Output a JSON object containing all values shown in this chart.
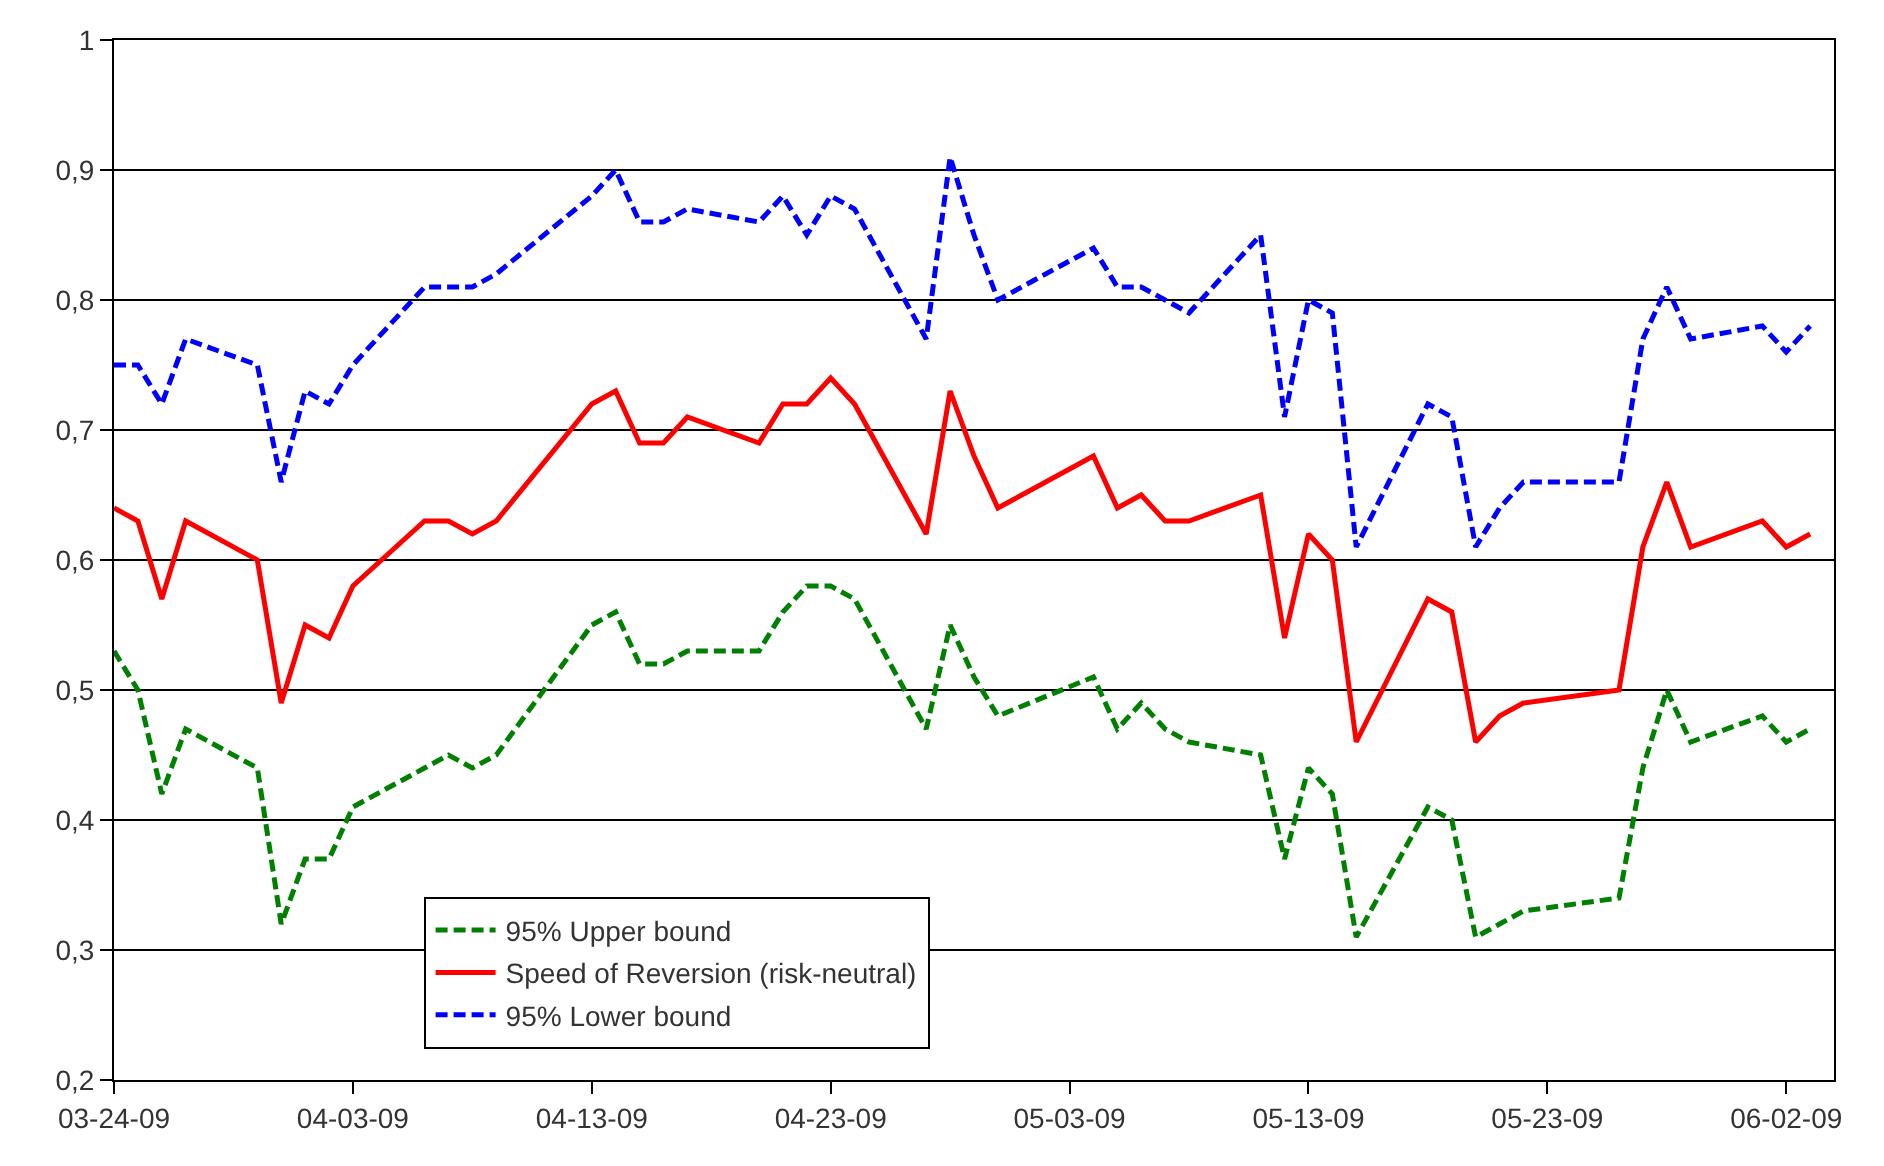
{
  "chart_data": {
    "type": "line",
    "x": [
      "--03-24",
      "--03-25",
      "--03-26",
      "--03-27",
      "--03-30",
      "--03-31",
      "--04-01",
      "--04-02",
      "--04-03",
      "--04-06",
      "--04-07",
      "--04-08",
      "--04-09",
      "--04-13",
      "--04-14",
      "--04-15",
      "--04-16",
      "--04-17",
      "--04-20",
      "--04-21",
      "--04-22",
      "--04-23",
      "--04-24",
      "--04-27",
      "--04-28",
      "--04-29",
      "--04-30",
      "--05-04",
      "--05-05",
      "--05-06",
      "--05-07",
      "--05-08",
      "--05-11",
      "--05-12",
      "--05-13",
      "--05-14",
      "--05-15",
      "--05-18",
      "--05-19",
      "--05-20",
      "--05-21",
      "--05-22",
      "--05-26",
      "--05-27",
      "--05-28",
      "--05-29",
      "--06-01",
      "--06-02",
      "--06-03"
    ],
    "series": [
      {
        "name": "95% Upper bound",
        "color": "#008000",
        "line_style": "dashed",
        "values": [
          0.53,
          0.5,
          0.42,
          0.47,
          0.44,
          0.32,
          0.37,
          0.37,
          0.41,
          0.44,
          0.45,
          0.44,
          0.45,
          0.55,
          0.56,
          0.52,
          0.52,
          0.53,
          0.53,
          0.56,
          0.58,
          0.58,
          0.57,
          0.47,
          0.55,
          0.51,
          0.48,
          0.51,
          0.47,
          0.49,
          0.47,
          0.46,
          0.45,
          0.37,
          0.44,
          0.42,
          0.31,
          0.41,
          0.4,
          0.31,
          0.32,
          0.33,
          0.34,
          0.44,
          0.5,
          0.46,
          0.48,
          0.46,
          0.47
        ]
      },
      {
        "name": "Speed of Reversion (risk-neutral)",
        "color": "#ff0000",
        "line_style": "solid",
        "values": [
          0.64,
          0.63,
          0.57,
          0.63,
          0.6,
          0.49,
          0.55,
          0.54,
          0.58,
          0.63,
          0.63,
          0.62,
          0.63,
          0.72,
          0.73,
          0.69,
          0.69,
          0.71,
          0.69,
          0.72,
          0.72,
          0.74,
          0.72,
          0.62,
          0.73,
          0.68,
          0.64,
          0.68,
          0.64,
          0.65,
          0.63,
          0.63,
          0.65,
          0.54,
          0.62,
          0.6,
          0.46,
          0.57,
          0.56,
          0.46,
          0.48,
          0.49,
          0.5,
          0.61,
          0.66,
          0.61,
          0.63,
          0.61,
          0.62
        ]
      },
      {
        "name": "95% Lower bound",
        "color": "#0000ff",
        "line_style": "dashed",
        "values": [
          0.75,
          0.75,
          0.72,
          0.77,
          0.75,
          0.66,
          0.73,
          0.72,
          0.75,
          0.81,
          0.81,
          0.81,
          0.82,
          0.88,
          0.9,
          0.86,
          0.86,
          0.87,
          0.86,
          0.88,
          0.85,
          0.88,
          0.87,
          0.77,
          0.91,
          0.85,
          0.8,
          0.84,
          0.81,
          0.81,
          0.8,
          0.79,
          0.85,
          0.71,
          0.8,
          0.79,
          0.61,
          0.72,
          0.71,
          0.61,
          0.64,
          0.66,
          0.66,
          0.77,
          0.81,
          0.77,
          0.78,
          0.76,
          0.78
        ]
      }
    ],
    "xlim": [
      "--03-24",
      "--06-04"
    ],
    "xticks": [
      {
        "value": "--03-24",
        "label": "03-24-09"
      },
      {
        "value": "--04-03",
        "label": "04-03-09"
      },
      {
        "value": "--04-13",
        "label": "04-13-09"
      },
      {
        "value": "--04-23",
        "label": "04-23-09"
      },
      {
        "value": "--05-03",
        "label": "05-03-09"
      },
      {
        "value": "--05-13",
        "label": "05-13-09"
      },
      {
        "value": "--05-23",
        "label": "05-23-09"
      },
      {
        "value": "--06-02",
        "label": "06-02-09"
      }
    ],
    "ylim": [
      0.2,
      1
    ],
    "yticks": [
      {
        "value": 0.2,
        "label": "0,2"
      },
      {
        "value": 0.3,
        "label": "0,3"
      },
      {
        "value": 0.4,
        "label": "0,4"
      },
      {
        "value": 0.5,
        "label": "0,5"
      },
      {
        "value": 0.6,
        "label": "0,6"
      },
      {
        "value": 0.7,
        "label": "0,7"
      },
      {
        "value": 0.8,
        "label": "0,8"
      },
      {
        "value": 0.9,
        "label": "0,9"
      },
      1
    ],
    "grid": "y",
    "legend": "bottom",
    "marker": "none"
  }
}
